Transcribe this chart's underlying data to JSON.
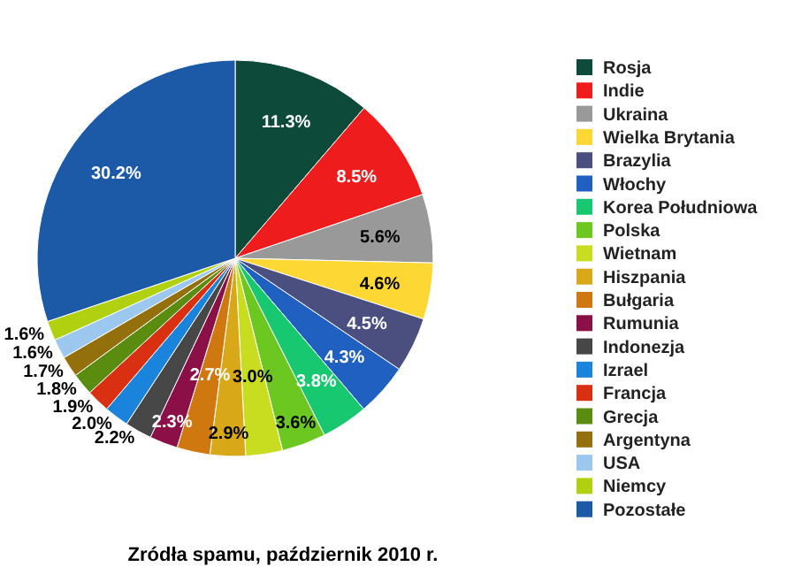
{
  "chart_data": {
    "type": "pie",
    "title": "Zródła spamu, październik 2010 r.",
    "categories": [
      "Rosja",
      "Indie",
      "Ukraina",
      "Wielka Brytania",
      "Brazylia",
      "Włochy",
      "Korea Południowa",
      "Polska",
      "Wietnam",
      "Hiszpania",
      "Bułgaria",
      "Rumunia",
      "Indonezja",
      "Izrael",
      "Francja",
      "Grecja",
      "Argentyna",
      "USA",
      "Niemcy",
      "Pozostałe"
    ],
    "values": [
      11.3,
      8.5,
      5.6,
      4.6,
      4.5,
      4.3,
      3.8,
      3.6,
      3.0,
      2.9,
      2.7,
      2.3,
      2.2,
      2.0,
      1.9,
      1.8,
      1.7,
      1.6,
      1.6,
      30.2
    ],
    "value_labels": [
      "11.3%",
      "8.5%",
      "5.6%",
      "4.6%",
      "4.5%",
      "4.3%",
      "3.8%",
      "3.6%",
      "3.0%",
      "2.9%",
      "2.7%",
      "2.3%",
      "2.2%",
      "2.0%",
      "1.9%",
      "1.8%",
      "1.7%",
      "1.6%",
      "1.6%",
      "30.2%"
    ],
    "colors": [
      "#0d4a3a",
      "#ee1c1c",
      "#999999",
      "#fdd835",
      "#4a4f80",
      "#2060c0",
      "#18c870",
      "#6cc820",
      "#c8dc20",
      "#d8a818",
      "#d07810",
      "#8c1048",
      "#474747",
      "#1a84dc",
      "#d83010",
      "#5a8c10",
      "#94700c",
      "#9cc8f0",
      "#b0d010",
      "#1c5aa8"
    ],
    "legend": "right"
  }
}
